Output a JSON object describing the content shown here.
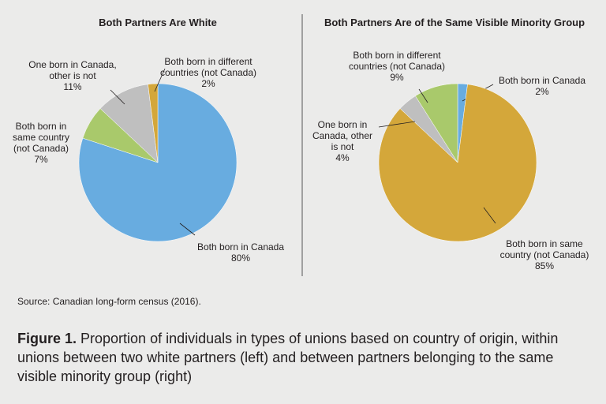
{
  "chart_data": [
    {
      "type": "pie",
      "title": "Both Partners Are White",
      "slices": [
        {
          "label": [
            "Both born in Canada",
            "80%"
          ],
          "value": 80,
          "color": "#68ace0"
        },
        {
          "label": [
            "Both born in",
            "same country",
            "(not Canada)",
            "7%"
          ],
          "value": 7,
          "color": "#a9c96b"
        },
        {
          "label": [
            "One born in Canada,",
            "other is not",
            "11%"
          ],
          "value": 11,
          "color": "#bfbfbf"
        },
        {
          "label": [
            "Both born in different",
            "countries (not Canada)",
            "2%"
          ],
          "value": 2,
          "color": "#d4a73a"
        }
      ]
    },
    {
      "type": "pie",
      "title": "Both Partners Are of the Same Visible Minority Group",
      "slices": [
        {
          "label": [
            "Both born in Canada",
            "2%"
          ],
          "value": 2,
          "color": "#68ace0"
        },
        {
          "label": [
            "Both born in same",
            "country (not Canada)",
            "85%"
          ],
          "value": 85,
          "color": "#d4a73a"
        },
        {
          "label": [
            "One born in",
            "Canada, other",
            "is not",
            "4%"
          ],
          "value": 4,
          "color": "#bfbfbf"
        },
        {
          "label": [
            "Both born in different",
            "countries (not Canada)",
            "9%"
          ],
          "value": 9,
          "color": "#a9c96b"
        }
      ]
    }
  ],
  "source": "Source: Canadian long-form census (2016).",
  "caption": {
    "label": "Figure 1.",
    "text": " Proportion of individuals in types of unions based on country of origin, within unions between two white partners (left) and between partners belonging to the same visible minority group (right)"
  }
}
